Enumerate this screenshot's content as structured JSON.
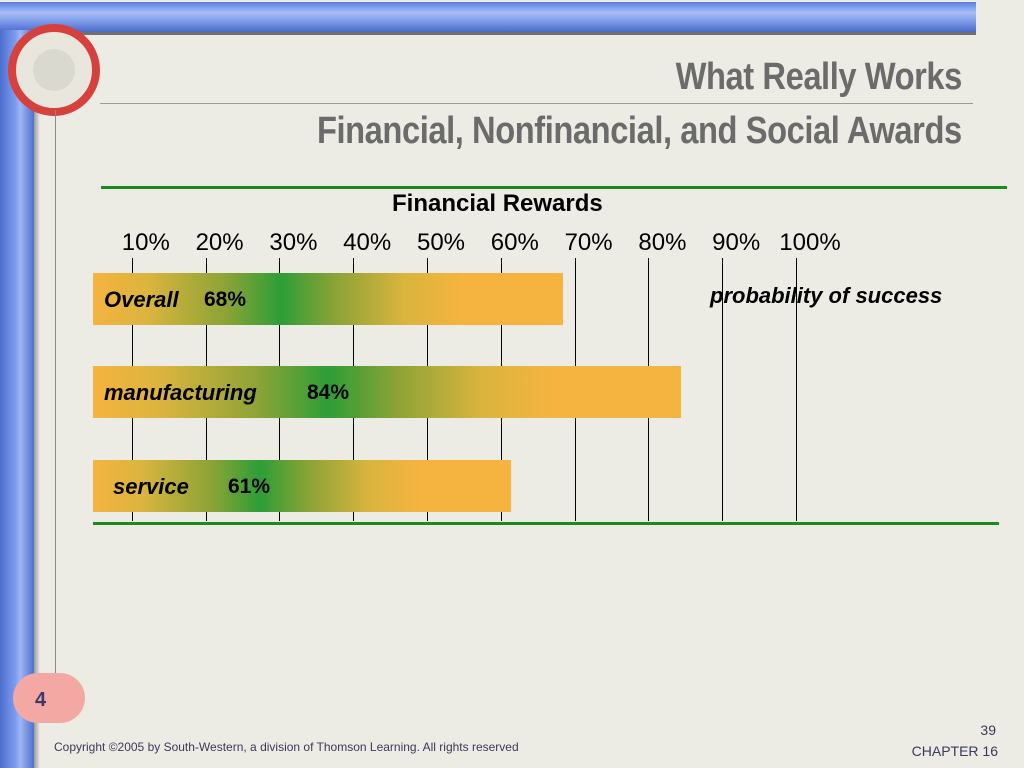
{
  "slide": {
    "title_line1": "What Really Works",
    "title_line2": "Financial, Nonfinancial, and Social Awards",
    "badge": "4",
    "copyright": "Copyright ©2005 by South-Western, a division of Thomson Learning.  All rights reserved",
    "page_number": "39",
    "chapter": "CHAPTER 16"
  },
  "colors": {
    "bar_edge": "#f4b43f",
    "bar_center": "#2d9e37",
    "rule_green": "#1c8a1c",
    "title_gray": "#6b6b6b",
    "accent_red": "#d6403d",
    "accent_blue": "#5a7de0"
  },
  "chart_data": {
    "type": "bar",
    "orientation": "horizontal",
    "title": "Financial Rewards",
    "x_ticks": [
      "10%",
      "20%",
      "30%",
      "40%",
      "50%",
      "60%",
      "70%",
      "80%",
      "90%",
      "100%"
    ],
    "x_tick_values": [
      10,
      20,
      30,
      40,
      50,
      60,
      70,
      80,
      90,
      100
    ],
    "annotation": "probability of success",
    "grid": true,
    "bars": [
      {
        "label": "Overall",
        "value_label": "68%",
        "value": 68
      },
      {
        "label": "manufacturing",
        "value_label": "84%",
        "value": 84
      },
      {
        "label": "service",
        "value_label": "61%",
        "value": 61
      }
    ]
  }
}
